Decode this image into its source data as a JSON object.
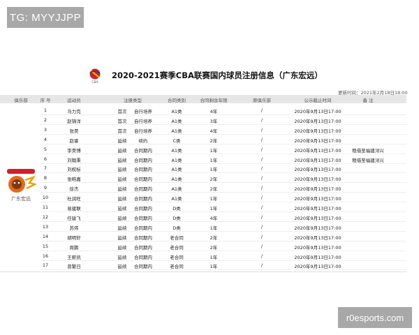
{
  "watermark_top": "TG: MYYJJPP",
  "watermark_bottom": "r0esports.com",
  "title": "2020-2021赛季CBA联赛国内球员注册信息（广东宏远）",
  "logo_text": "CBA",
  "update_time": "更新时间：2021年2月18日18:00",
  "club_name": "广东宏远",
  "headers": [
    "俱乐部",
    "序 号",
    "运动员",
    "注册类型",
    "合同类别",
    "合同剩余年限",
    "原俱乐部",
    "公示截止时间",
    "备 注"
  ],
  "rows": [
    [
      "1",
      "马力克",
      "首次",
      "自行培养",
      "A1类",
      "4年",
      "/",
      "2020年9月13日17:00",
      ""
    ],
    [
      "2",
      "赵锦洋",
      "首次",
      "自行培养",
      "A1类",
      "3年",
      "/",
      "2020年9月13日17:00",
      ""
    ],
    [
      "3",
      "张昊",
      "首次",
      "自行培养",
      "A1类",
      "4年",
      "/",
      "2020年9月13日17:00",
      ""
    ],
    [
      "4",
      "赵睿",
      "延续",
      "续约",
      "C类",
      "2年",
      "/",
      "2020年9月13日17:00",
      ""
    ],
    [
      "5",
      "李昊博",
      "延续",
      "合同期内",
      "A1类",
      "1年",
      "/",
      "2020年9月13日17:00",
      "租借至福建浔兴"
    ],
    [
      "6",
      "刘翰秉",
      "延续",
      "合同期内",
      "A1类",
      "1年",
      "/",
      "2020年9月13日17:00",
      "租借至福建浔兴"
    ],
    [
      "7",
      "刘权标",
      "延续",
      "合同期内",
      "A1类",
      "1年",
      "/",
      "2020年9月13日17:00",
      ""
    ],
    [
      "8",
      "张皓嘉",
      "延续",
      "合同期内",
      "A1类",
      "2年",
      "/",
      "2020年9月13日17:00",
      ""
    ],
    [
      "9",
      "徐杰",
      "延续",
      "合同期内",
      "A1类",
      "2年",
      "/",
      "2020年9月13日17:00",
      ""
    ],
    [
      "10",
      "杜润旺",
      "延续",
      "合同期内",
      "A1类",
      "1年",
      "/",
      "2020年9月13日17:00",
      ""
    ],
    [
      "11",
      "易建联",
      "延续",
      "合同期内",
      "D类",
      "1年",
      "/",
      "2020年9月13日17:00",
      ""
    ],
    [
      "12",
      "任骏飞",
      "延续",
      "合同期内",
      "D类",
      "4年",
      "/",
      "2020年9月13日17:00",
      ""
    ],
    [
      "13",
      "苏伟",
      "延续",
      "合同期内",
      "D类",
      "1年",
      "/",
      "2020年9月13日17:00",
      ""
    ],
    [
      "14",
      "胡明轩",
      "延续",
      "合同期内",
      "老合同",
      "2年",
      "/",
      "2020年9月13日17:00",
      ""
    ],
    [
      "15",
      "周鹏",
      "延续",
      "合同期内",
      "老合同",
      "2年",
      "/",
      "2020年9月13日17:00",
      ""
    ],
    [
      "16",
      "王薪凯",
      "延续",
      "合同期内",
      "老合同",
      "1年",
      "/",
      "2020年9月13日17:00",
      ""
    ],
    [
      "17",
      "曾繁日",
      "延续",
      "合同期内",
      "老合同",
      "1年",
      "/",
      "2020年9月13日17:00",
      ""
    ]
  ],
  "colors": {
    "watermark": "#a8a8a8",
    "header_bg": "#e6e6e6",
    "logo_red": "#d0202a",
    "club_orange": "#e8681a"
  }
}
